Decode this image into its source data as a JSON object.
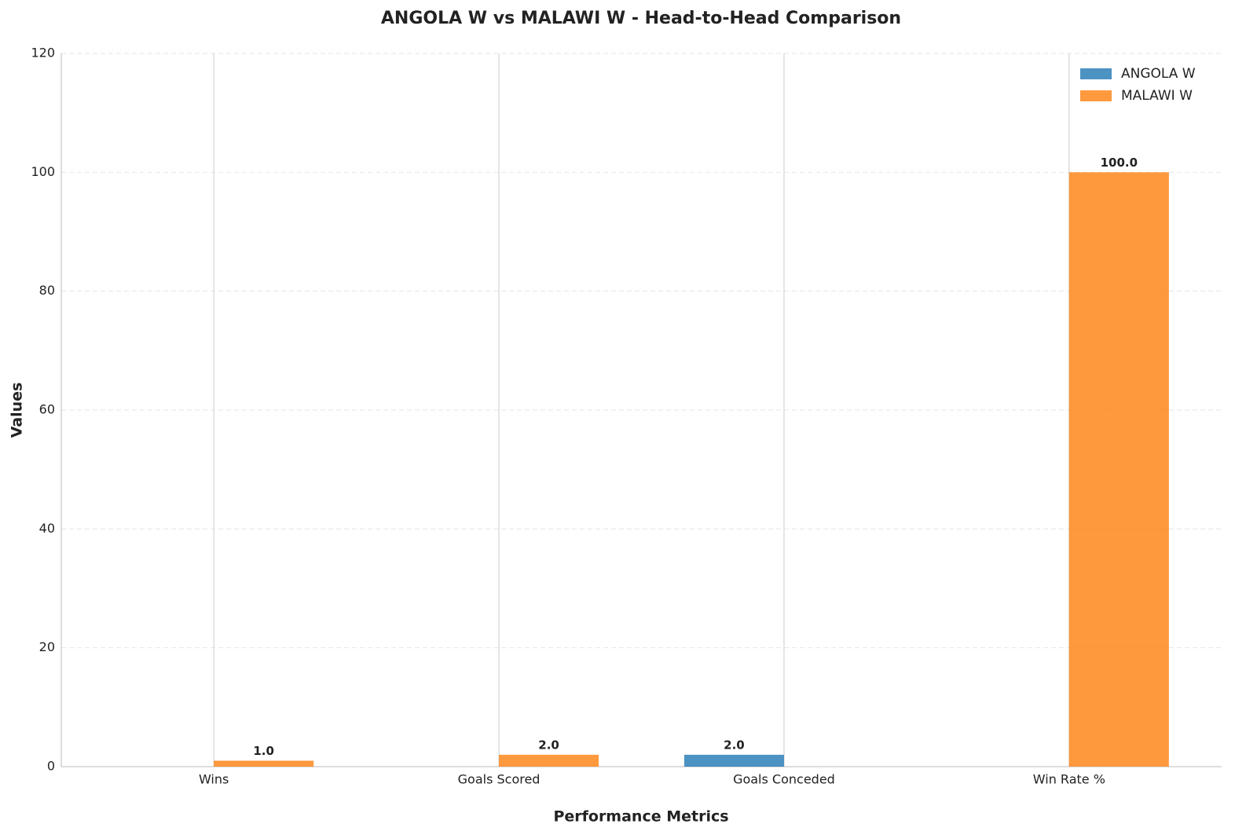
{
  "chart_data": {
    "type": "bar",
    "title": "ANGOLA W vs MALAWI W - Head-to-Head Comparison",
    "x_label": "Performance Metrics",
    "y_label": "Values",
    "categories": [
      "Wins",
      "Goals Scored",
      "Goals Conceded",
      "Win Rate %"
    ],
    "series": [
      {
        "name": "ANGOLA W",
        "color": "#1f77b4",
        "values": [
          0,
          0,
          2,
          0
        ],
        "value_labels": [
          null,
          null,
          "2.0",
          null
        ]
      },
      {
        "name": "MALAWI W",
        "color": "#ff7f0e",
        "values": [
          1,
          2,
          0,
          100
        ],
        "value_labels": [
          "1.0",
          "2.0",
          null,
          "100.0"
        ]
      }
    ],
    "ylim": [
      0,
      120
    ],
    "yticks": [
      0,
      20,
      40,
      60,
      80,
      100,
      120
    ],
    "grid": true,
    "legend": "upper right"
  }
}
